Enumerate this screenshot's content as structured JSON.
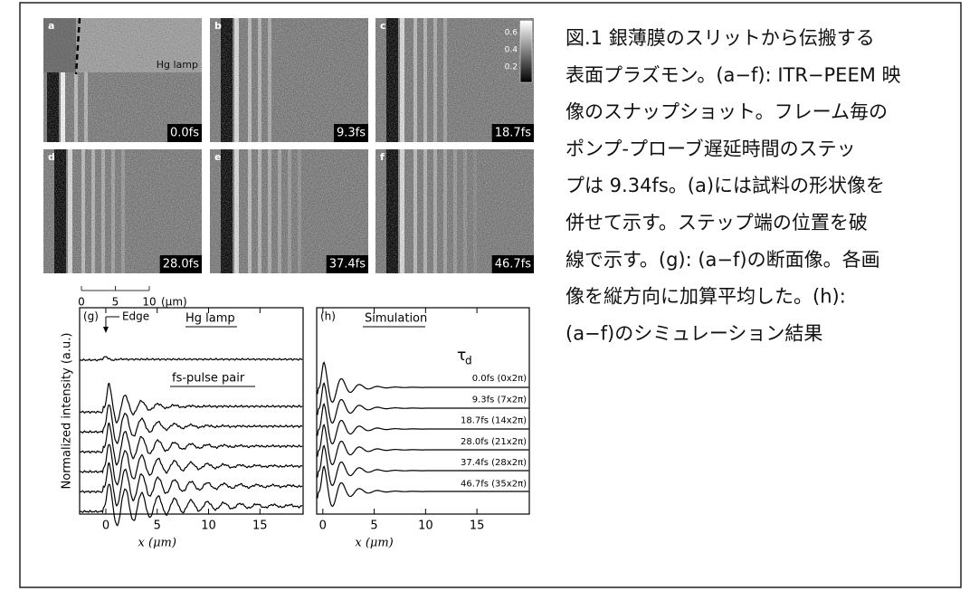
{
  "figure": {
    "panels": [
      {
        "letter": "a",
        "time": "0.0fs"
      },
      {
        "letter": "b",
        "time": "9.3fs"
      },
      {
        "letter": "c",
        "time": "18.7fs"
      },
      {
        "letter": "d",
        "time": "28.0fs"
      },
      {
        "letter": "e",
        "time": "37.4fs"
      },
      {
        "letter": "f",
        "time": "46.7fs"
      }
    ],
    "hg_lamp_label": "Hg lamp",
    "colorbar_ticks": [
      0.6,
      0.4,
      0.2
    ],
    "scale_bar": {
      "ticks": [
        0,
        5,
        10
      ],
      "unit": "(μm)"
    },
    "plots": [
      {
        "panel": "(g)",
        "edge_label": "Edge",
        "hg_lamp_label": "Hg lamp",
        "pulse_label": "fs-pulse pair",
        "ylabel": "Normalized intensity (a.u.)",
        "xlabel": "x (μm)",
        "xlim": [
          -2.55,
          19.2
        ],
        "xticks": [
          0,
          5,
          10,
          15
        ]
      },
      {
        "panel": "(h)",
        "sim_label": "Simulation",
        "tau": "τ",
        "tau_sub": "d",
        "xlabel": "x (μm)",
        "xlim": [
          -0.6,
          20.1
        ],
        "xticks": [
          0,
          5,
          10,
          15
        ],
        "curve_labels": [
          "0.0fs (0x2π)",
          "9.3fs (7x2π)",
          "18.7fs (14x2π)",
          "28.0fs (21x2π)",
          "37.4fs (28x2π)",
          "46.7fs (35x2π)"
        ]
      }
    ]
  },
  "caption": {
    "lines": [
      "図.1 銀薄膜のスリットから伝搬する",
      "表面プラズモン。(a−f): ITR−PEEM 映",
      "像のスナップショット。フレーム毎の",
      "ポンプ-プローブ遅延時間のステッ",
      "プは 9.34fs。(a)には試料の形状像を",
      "併せて示す。ステップ端の位置を破",
      "線で示す。(g): (a−f)の断面像。各画",
      "像を縦方向に加算平均した。(h):",
      "(a−f)のシミュレーション結果"
    ]
  }
}
